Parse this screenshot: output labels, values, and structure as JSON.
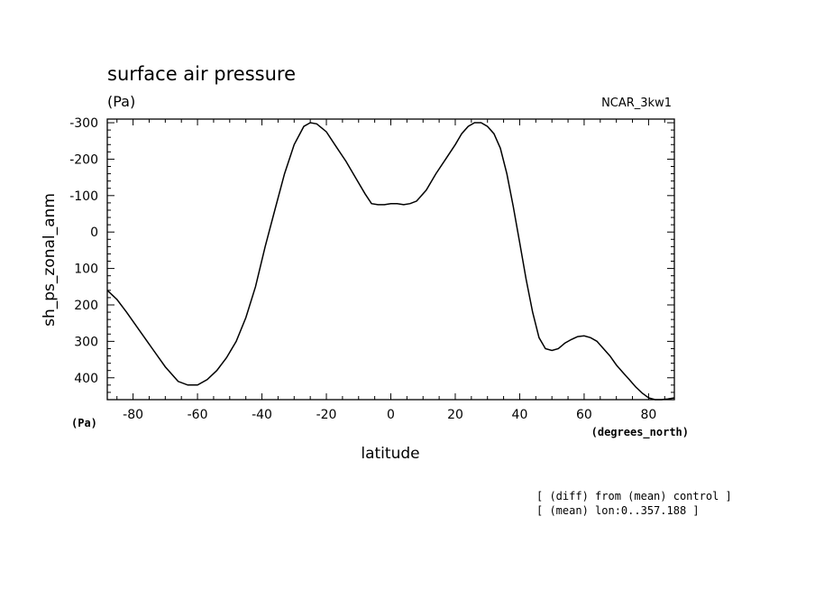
{
  "chart_data": {
    "type": "line",
    "title": "surface air pressure",
    "units_label": "(Pa)",
    "model_label": "NCAR_3kw1",
    "xlabel": "latitude",
    "ylabel": "sh_ps_zonal_anm",
    "x_units": "(degrees_north)",
    "y_units": "(Pa)",
    "xlim": [
      -88,
      88
    ],
    "ylim": [
      460,
      -310
    ],
    "y_inverted": true,
    "x_ticks": [
      -80,
      -60,
      -40,
      -20,
      0,
      20,
      40,
      60,
      80
    ],
    "x_tick_labels": [
      "-80",
      "-60",
      "-40",
      "-20",
      "0",
      "20",
      "40",
      "60",
      "80"
    ],
    "y_ticks": [
      -300,
      -200,
      -100,
      0,
      100,
      200,
      300,
      400
    ],
    "y_tick_labels": [
      "-300",
      "-200",
      "-100",
      "0",
      "100",
      "200",
      "300",
      "400"
    ],
    "grid": false,
    "series": [
      {
        "color": "#000000",
        "x": [
          -88,
          -85,
          -82,
          -78,
          -74,
          -70,
          -66,
          -63,
          -60,
          -57,
          -54,
          -51,
          -48,
          -45,
          -42,
          -39,
          -36,
          -33,
          -30,
          -27,
          -25,
          -23,
          -20,
          -17,
          -14,
          -11,
          -8,
          -6,
          -4,
          -2,
          0,
          2,
          4,
          6,
          8,
          11,
          14,
          17,
          20,
          22,
          24,
          26,
          28,
          30,
          32,
          34,
          36,
          38,
          40,
          42,
          44,
          46,
          48,
          50,
          52,
          54,
          56,
          58,
          60,
          62,
          64,
          66,
          68,
          70,
          72,
          74,
          76,
          78,
          80,
          82,
          84,
          86,
          88
        ],
        "y": [
          160,
          185,
          220,
          270,
          320,
          370,
          410,
          420,
          420,
          405,
          380,
          345,
          300,
          235,
          150,
          40,
          -60,
          -160,
          -240,
          -290,
          -300,
          -297,
          -275,
          -235,
          -195,
          -150,
          -105,
          -78,
          -75,
          -75,
          -78,
          -78,
          -75,
          -78,
          -85,
          -115,
          -160,
          -200,
          -240,
          -270,
          -290,
          -300,
          -300,
          -290,
          -270,
          -230,
          -160,
          -70,
          30,
          130,
          220,
          290,
          320,
          325,
          320,
          305,
          295,
          287,
          285,
          290,
          300,
          320,
          340,
          365,
          385,
          405,
          425,
          442,
          455,
          462,
          462,
          458,
          455
        ]
      }
    ]
  },
  "annotations": {
    "line1": "[ (diff) from (mean) control ]",
    "line2": "[ (mean) lon:0..357.188 ]"
  }
}
